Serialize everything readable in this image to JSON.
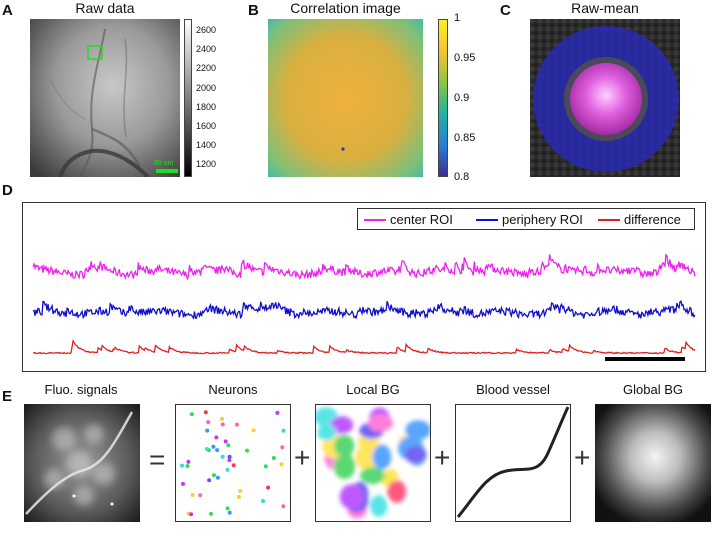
{
  "panel_labels": {
    "a": "A",
    "b": "B",
    "c": "C",
    "d": "D",
    "e": "E"
  },
  "raw": {
    "title": "Raw data",
    "scalebar_label": "80 um",
    "colorbar_ticks": [
      "2600",
      "2400",
      "2200",
      "2000",
      "1800",
      "1600",
      "1400",
      "1200"
    ]
  },
  "corr": {
    "title": "Correlation image",
    "colorbar_ticks": [
      "1",
      "0.95",
      "0.9",
      "0.85",
      "0.8"
    ]
  },
  "rawmean": {
    "title": "Raw-mean"
  },
  "traces": {
    "legend": [
      {
        "label": "center ROI",
        "color": "#ee22ee"
      },
      {
        "label": "periphery ROI",
        "color": "#1010cc"
      },
      {
        "label": "difference",
        "color": "#e02020"
      }
    ]
  },
  "decomp": {
    "captions": [
      "Fluo. signals",
      "Neurons",
      "Local BG",
      "Blood vessel",
      "Global BG"
    ],
    "equals": "=",
    "plus": "+"
  },
  "colors": {
    "green_box": "#22dd22",
    "center_roi": "#ee22ee",
    "periphery_roi": "#1010cc",
    "difference": "#e02020"
  }
}
